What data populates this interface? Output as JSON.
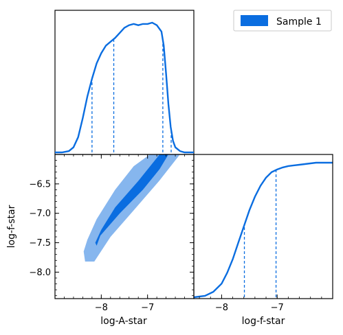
{
  "chart_data": {
    "type": "corner",
    "colors": {
      "line": "#0a6de0",
      "contour_inner": "#0a6de0",
      "contour_outer": "#86b6ee"
    },
    "legend": {
      "label": "Sample 1",
      "placement": "top-right"
    },
    "marginal_A": {
      "type": "line",
      "xlim": [
        -9.0,
        -6.0
      ],
      "x": [
        -9.0,
        -8.85,
        -8.7,
        -8.6,
        -8.5,
        -8.4,
        -8.3,
        -8.2,
        -8.1,
        -8.0,
        -7.9,
        -7.8,
        -7.7,
        -7.6,
        -7.5,
        -7.4,
        -7.3,
        -7.2,
        -7.1,
        -7.0,
        -6.9,
        -6.8,
        -6.7,
        -6.65,
        -6.6,
        -6.55,
        -6.5,
        -6.45,
        -6.4,
        -6.3,
        -6.2,
        -6.1,
        -6.0
      ],
      "y": [
        0.0,
        0.0,
        0.01,
        0.04,
        0.12,
        0.27,
        0.44,
        0.58,
        0.7,
        0.78,
        0.84,
        0.87,
        0.9,
        0.94,
        0.98,
        1.0,
        1.01,
        1.0,
        1.01,
        1.01,
        1.02,
        1.0,
        0.95,
        0.84,
        0.62,
        0.38,
        0.2,
        0.09,
        0.04,
        0.01,
        0.0,
        0.0,
        0.0
      ],
      "quantile_lines": [
        -8.2,
        -7.73,
        -6.67,
        -6.49
      ]
    },
    "joint": {
      "type": "contour",
      "xlim": [
        -9.0,
        -6.0
      ],
      "ylim": [
        -8.45,
        -6.0
      ],
      "yticks": [
        -6.5,
        -7.0,
        -7.5,
        -8.0
      ],
      "inner_polygon": [
        [
          -8.1,
          -7.55
        ],
        [
          -8.02,
          -7.38
        ],
        [
          -7.6,
          -7.0
        ],
        [
          -7.1,
          -6.6
        ],
        [
          -6.74,
          -6.25
        ],
        [
          -6.55,
          -6.0
        ],
        [
          -6.74,
          -6.0
        ],
        [
          -7.2,
          -6.45
        ],
        [
          -7.7,
          -6.9
        ],
        [
          -8.0,
          -7.28
        ],
        [
          -8.13,
          -7.5
        ]
      ],
      "outer_polygon": [
        [
          -8.35,
          -7.82
        ],
        [
          -8.15,
          -7.82
        ],
        [
          -7.8,
          -7.4
        ],
        [
          -7.3,
          -6.95
        ],
        [
          -6.75,
          -6.45
        ],
        [
          -6.3,
          -6.0
        ],
        [
          -6.95,
          -6.0
        ],
        [
          -7.3,
          -6.2
        ],
        [
          -7.7,
          -6.6
        ],
        [
          -8.1,
          -7.1
        ],
        [
          -8.3,
          -7.45
        ],
        [
          -8.38,
          -7.65
        ]
      ]
    },
    "marginal_f": {
      "type": "line",
      "xlim": [
        -8.5,
        -6.0
      ],
      "x": [
        -8.5,
        -8.3,
        -8.15,
        -8.0,
        -7.9,
        -7.8,
        -7.7,
        -7.6,
        -7.5,
        -7.4,
        -7.3,
        -7.2,
        -7.1,
        -7.0,
        -6.9,
        -6.8,
        -6.7,
        -6.6,
        -6.5,
        -6.4,
        -6.3,
        -6.2,
        -6.1,
        -6.0
      ],
      "y": [
        0.0,
        0.01,
        0.04,
        0.1,
        0.18,
        0.28,
        0.4,
        0.52,
        0.64,
        0.74,
        0.82,
        0.88,
        0.92,
        0.94,
        0.955,
        0.965,
        0.97,
        0.975,
        0.98,
        0.985,
        0.99,
        0.99,
        0.99,
        0.99
      ],
      "quantile_lines": [
        -7.59,
        -7.02
      ]
    },
    "axes": {
      "joint_xticks": [
        "−8",
        "−7"
      ],
      "joint_xtick_values": [
        -8,
        -7
      ],
      "joint_yticks": [
        "−6.5",
        "−7.0",
        "−7.5",
        "−8.0"
      ],
      "f_xticks": [
        "−8",
        "−7"
      ],
      "f_xtick_values": [
        -8,
        -7
      ],
      "joint_xlabel": "log-A-star",
      "joint_ylabel": "log-f-star",
      "f_xlabel": "log-f-star"
    }
  }
}
